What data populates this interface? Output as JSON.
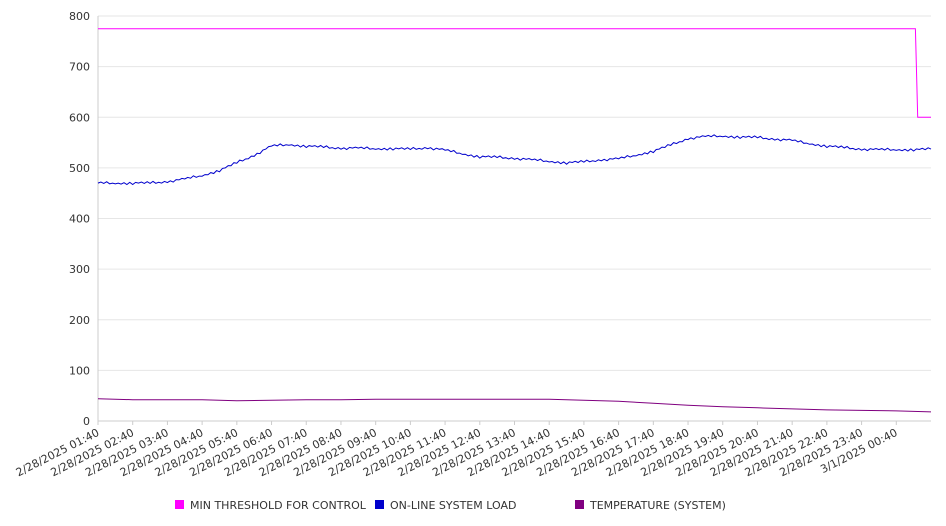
{
  "chart_data": {
    "type": "line",
    "y_ticks": [
      "0",
      "100",
      "200",
      "300",
      "400",
      "500",
      "600",
      "700",
      "800"
    ],
    "ylim": [
      0,
      800
    ],
    "grid": true,
    "legend_position": "bottom",
    "x_tick_labels": [
      "2/28/2025 01:40",
      "2/28/2025 02:40",
      "2/28/2025 03:40",
      "2/28/2025 04:40",
      "2/28/2025 05:40",
      "2/28/2025 06:40",
      "2/28/2025 07:40",
      "2/28/2025 08:40",
      "2/28/2025 09:40",
      "2/28/2025 10:40",
      "2/28/2025 11:40",
      "2/28/2025 12:40",
      "2/28/2025 13:40",
      "2/28/2025 14:40",
      "2/28/2025 15:40",
      "2/28/2025 16:40",
      "2/28/2025 17:40",
      "2/28/2025 18:40",
      "2/28/2025 19:40",
      "2/28/2025 20:40",
      "2/28/2025 21:40",
      "2/28/2025 22:40",
      "2/28/2025 23:40",
      "3/1/2025 00:40"
    ],
    "x_range": [
      "2/28/2025 01:40",
      "3/1/2025 01:40"
    ],
    "series": [
      {
        "name": "MIN THRESHOLD FOR CONTROL",
        "color": "#ff00ff",
        "points": [
          [
            "2/28/2025 01:40",
            775
          ],
          [
            "3/1/2025 01:13",
            775
          ],
          [
            "3/1/2025 01:17",
            600
          ],
          [
            "3/1/2025 01:40",
            600
          ]
        ]
      },
      {
        "name": "ON-LINE SYSTEM LOAD",
        "color": "#0000cc",
        "points": [
          [
            "2/28/2025 01:40",
            470
          ],
          [
            "2/28/2025 02:10",
            470
          ],
          [
            "2/28/2025 02:40",
            470
          ],
          [
            "2/28/2025 03:10",
            470
          ],
          [
            "2/28/2025 03:40",
            473
          ],
          [
            "2/28/2025 04:10",
            478
          ],
          [
            "2/28/2025 04:40",
            485
          ],
          [
            "2/28/2025 05:10",
            495
          ],
          [
            "2/28/2025 05:40",
            510
          ],
          [
            "2/28/2025 06:10",
            525
          ],
          [
            "2/28/2025 06:40",
            543
          ],
          [
            "2/28/2025 07:10",
            546
          ],
          [
            "2/28/2025 07:40",
            543
          ],
          [
            "2/28/2025 08:10",
            541
          ],
          [
            "2/28/2025 08:40",
            539
          ],
          [
            "2/28/2025 09:10",
            539
          ],
          [
            "2/28/2025 09:40",
            538
          ],
          [
            "2/28/2025 10:10",
            538
          ],
          [
            "2/28/2025 10:40",
            537
          ],
          [
            "2/28/2025 11:10",
            540
          ],
          [
            "2/28/2025 11:40",
            535
          ],
          [
            "2/28/2025 12:10",
            528
          ],
          [
            "2/28/2025 12:40",
            522
          ],
          [
            "2/28/2025 13:10",
            521
          ],
          [
            "2/28/2025 13:40",
            519
          ],
          [
            "2/28/2025 14:10",
            516
          ],
          [
            "2/28/2025 14:40",
            513
          ],
          [
            "2/28/2025 15:10",
            510
          ],
          [
            "2/28/2025 15:40",
            512
          ],
          [
            "2/28/2025 16:10",
            516
          ],
          [
            "2/28/2025 16:40",
            518
          ],
          [
            "2/28/2025 17:10",
            525
          ],
          [
            "2/28/2025 17:40",
            533
          ],
          [
            "2/28/2025 18:10",
            545
          ],
          [
            "2/28/2025 18:40",
            558
          ],
          [
            "2/28/2025 19:10",
            562
          ],
          [
            "2/28/2025 19:40",
            563
          ],
          [
            "2/28/2025 20:10",
            561
          ],
          [
            "2/28/2025 20:40",
            560
          ],
          [
            "2/28/2025 21:10",
            557
          ],
          [
            "2/28/2025 21:40",
            554
          ],
          [
            "2/28/2025 22:10",
            548
          ],
          [
            "2/28/2025 22:40",
            543
          ],
          [
            "2/28/2025 23:10",
            540
          ],
          [
            "2/28/2025 23:40",
            537
          ],
          [
            "3/1/2025 00:10",
            536
          ],
          [
            "3/1/2025 00:40",
            536
          ],
          [
            "3/1/2025 01:10",
            536
          ],
          [
            "3/1/2025 01:40",
            537
          ]
        ]
      },
      {
        "name": "TEMPERATURE (SYSTEM)",
        "color": "#800080",
        "points": [
          [
            "2/28/2025 01:40",
            44
          ],
          [
            "2/28/2025 02:40",
            42
          ],
          [
            "2/28/2025 03:40",
            42
          ],
          [
            "2/28/2025 04:40",
            42
          ],
          [
            "2/28/2025 05:40",
            40
          ],
          [
            "2/28/2025 06:40",
            41
          ],
          [
            "2/28/2025 07:40",
            42
          ],
          [
            "2/28/2025 08:40",
            42
          ],
          [
            "2/28/2025 09:40",
            43
          ],
          [
            "2/28/2025 10:40",
            43
          ],
          [
            "2/28/2025 11:40",
            43
          ],
          [
            "2/28/2025 12:40",
            43
          ],
          [
            "2/28/2025 13:40",
            43
          ],
          [
            "2/28/2025 14:40",
            43
          ],
          [
            "2/28/2025 15:40",
            41
          ],
          [
            "2/28/2025 16:40",
            39
          ],
          [
            "2/28/2025 17:40",
            35
          ],
          [
            "2/28/2025 18:40",
            31
          ],
          [
            "2/28/2025 19:40",
            28
          ],
          [
            "2/28/2025 20:40",
            26
          ],
          [
            "2/28/2025 21:40",
            24
          ],
          [
            "2/28/2025 22:40",
            22
          ],
          [
            "2/28/2025 23:40",
            21
          ],
          [
            "3/1/2025 00:40",
            20
          ],
          [
            "3/1/2025 01:40",
            18
          ]
        ]
      }
    ]
  }
}
